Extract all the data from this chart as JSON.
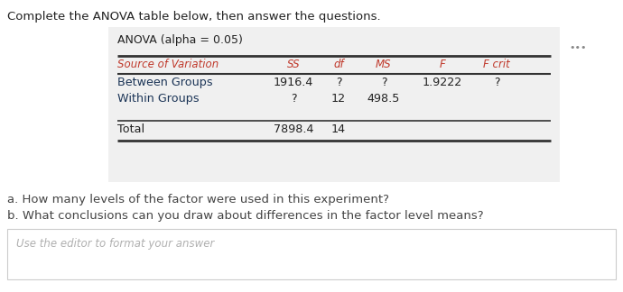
{
  "title_text": "Complete the ANOVA table below, then answer the questions.",
  "anova_title": "ANOVA (alpha = 0.05)",
  "col_headers": [
    "Source of Variation",
    "SS",
    "df",
    "MS",
    "F",
    "F crit"
  ],
  "row_labels": [
    "Between Groups",
    "Within Groups",
    "Total"
  ],
  "row_label_color": "#1a1a2e",
  "between_vals": [
    "1916.4",
    "?",
    "?",
    "1.9222",
    "?"
  ],
  "within_vals": [
    "?",
    "12",
    "498.5",
    "",
    ""
  ],
  "total_vals": [
    "7898.4",
    "14",
    "",
    "",
    ""
  ],
  "question_a": "a. How many levels of the factor were used in this experiment?",
  "question_b": "b. What conclusions can you draw about differences in the factor level means?",
  "editor_placeholder": "Use the editor to format your answer",
  "white_bg": "#ffffff",
  "gray_box_bg": "#f0f0f0",
  "header_italic_color": "#c0392b",
  "data_color": "#1a1a1a",
  "dots_color": "#888888",
  "question_color": "#444444",
  "placeholder_color": "#b0b0b0",
  "line_color": "#333333",
  "editor_border": "#cccccc",
  "title_fontsize": 9.5,
  "header_fontsize": 8.5,
  "data_fontsize": 9.2,
  "question_fontsize": 9.5,
  "placeholder_fontsize": 8.5,
  "anova_title_fontsize": 9.0
}
